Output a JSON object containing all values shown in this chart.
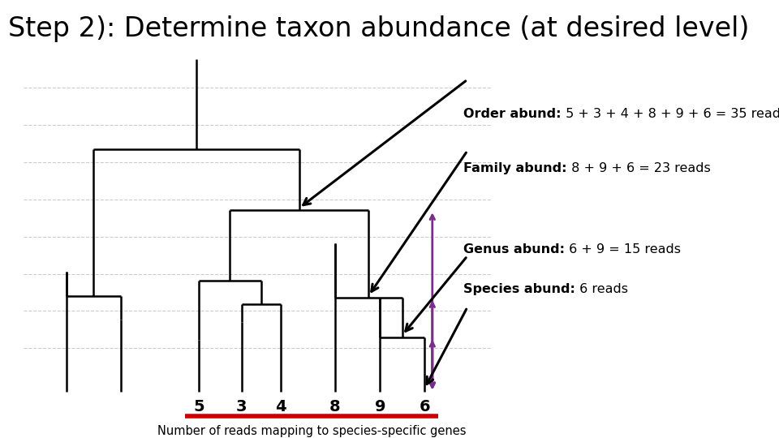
{
  "title": "Step 2): Determine taxon abundance (at desired level)",
  "title_fontsize": 24,
  "xlabel_text": "Number of reads mapping to species-specific genes",
  "leaf_labels": [
    "5",
    "3",
    "4",
    "8",
    "9",
    "6"
  ],
  "background_color": "#ffffff",
  "tree_color": "#000000",
  "purple_color": "#7B2D8B",
  "grid_color": "#cccccc",
  "red_color": "#cc0000",
  "annots": [
    {
      "bold": "Order abund:",
      "rest": " 5 + 3 + 4 + 8 + 9 + 6 = 35 reads",
      "fx": 0.595,
      "fy": 0.74
    },
    {
      "bold": "Family abund:",
      "rest": " 8 + 9 + 6 = 23 reads",
      "fx": 0.595,
      "fy": 0.615
    },
    {
      "bold": "Genus abund:",
      "rest": " 6 + 9 = 15 reads",
      "fx": 0.595,
      "fy": 0.43
    },
    {
      "bold": "Species abund:",
      "rest": " 6 reads",
      "fx": 0.595,
      "fy": 0.34
    }
  ],
  "lw": 1.8
}
